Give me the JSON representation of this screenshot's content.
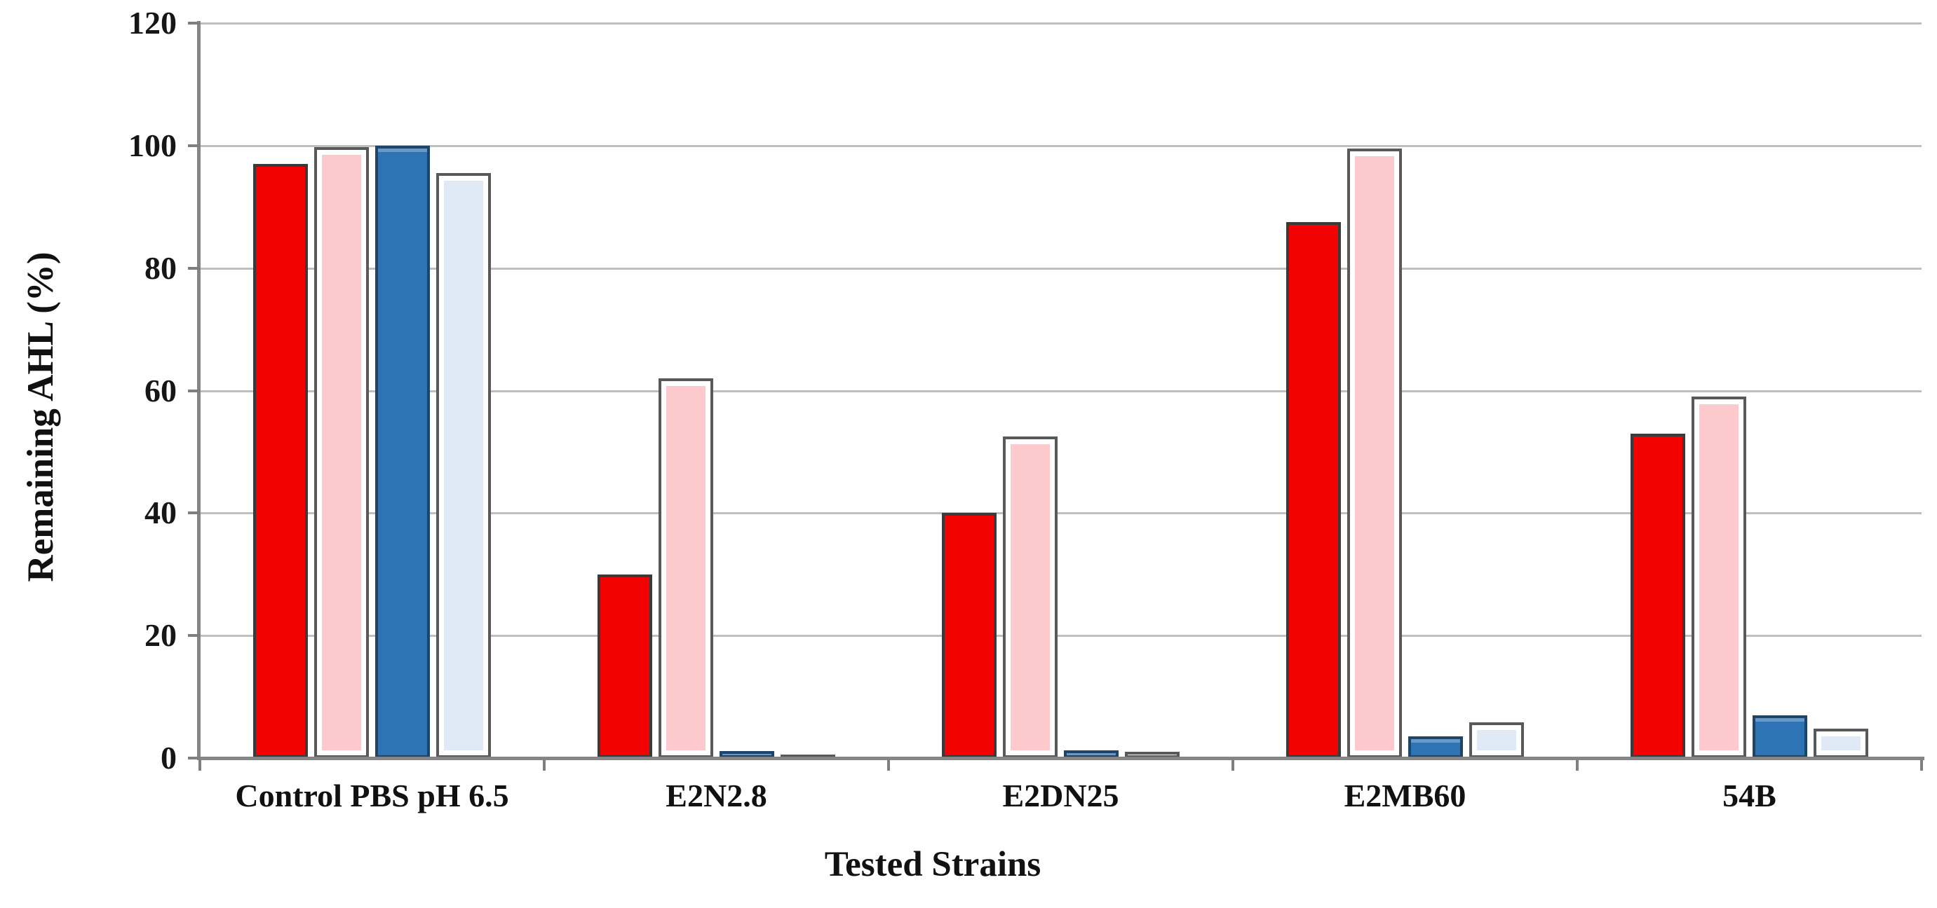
{
  "chart_data": {
    "type": "bar",
    "title": "",
    "xlabel": "Tested Strains",
    "ylabel": "Remaining AHL (%)",
    "ylim": [
      0,
      120
    ],
    "yticks": [
      "0",
      "20",
      "40",
      "60",
      "80",
      "100",
      "120"
    ],
    "grid": true,
    "legend_position": "none",
    "categories": [
      "Control PBS pH 6.5",
      "E2N2.8",
      "E2DN25",
      "E2MB60",
      "54B"
    ],
    "series": [
      {
        "name": "red",
        "fill": "#f30202",
        "border": "#3a3a3a",
        "values": [
          97,
          30,
          40,
          87.5,
          53
        ]
      },
      {
        "name": "pink",
        "fill": "#fccacd",
        "border": "#595959",
        "values": [
          99.8,
          62,
          52.5,
          99.5,
          59
        ]
      },
      {
        "name": "blue",
        "fill": "#2e73b4",
        "border": "#1d4469",
        "values": [
          100,
          1.2,
          1.3,
          3.5,
          7
        ]
      },
      {
        "name": "light-blue",
        "fill": "#dfeaf6",
        "border": "#595959",
        "values": [
          95.5,
          0.4,
          1,
          5.8,
          4.8
        ]
      }
    ],
    "colors": {
      "gridline": "#bfbfbf",
      "axis": "#858585",
      "text": "#111111",
      "background": "#ffffff"
    }
  }
}
